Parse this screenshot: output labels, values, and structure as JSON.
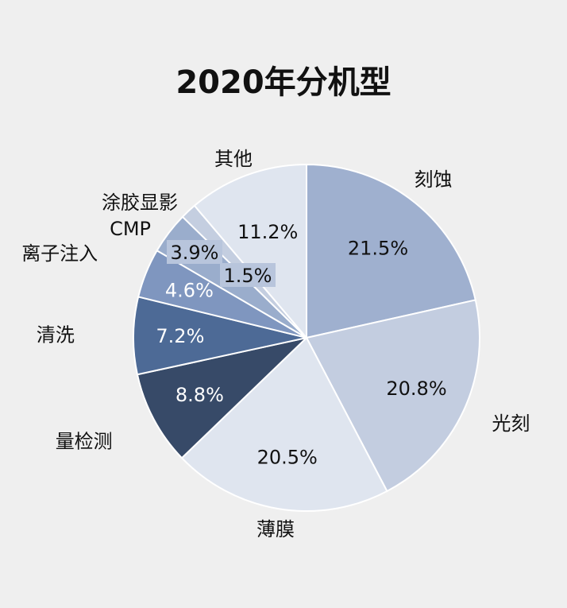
{
  "chart_data": {
    "type": "pie",
    "title": "2020年分机型",
    "slices": [
      {
        "label": "刻蚀",
        "value": 21.5,
        "display": "21.5%",
        "color": "#9fb0cf",
        "text_color": "#111111"
      },
      {
        "label": "光刻",
        "value": 20.8,
        "display": "20.8%",
        "color": "#c3cde0",
        "text_color": "#111111"
      },
      {
        "label": "薄膜",
        "value": 20.5,
        "display": "20.5%",
        "color": "#dfe5ef",
        "text_color": "#111111"
      },
      {
        "label": "量检测",
        "value": 8.8,
        "display": "8.8%",
        "color": "#374a68",
        "text_color": "#ffffff"
      },
      {
        "label": "清洗",
        "value": 7.2,
        "display": "7.2%",
        "color": "#4d6a96",
        "text_color": "#ffffff"
      },
      {
        "label": "离子注入",
        "value": 4.6,
        "display": "4.6%",
        "color": "#7f96bf",
        "text_color": "#ffffff"
      },
      {
        "label": "CMP",
        "value": 3.9,
        "display": "3.9%",
        "color": "#9aadcc",
        "text_color": "#111111"
      },
      {
        "label": "涂胶显影",
        "value": 1.5,
        "display": "1.5%",
        "color": "#c4ceE0",
        "text_color": "#111111"
      },
      {
        "label": "其他",
        "value": 11.2,
        "display": "11.2%",
        "color": "#dfe5ef",
        "text_color": "#111111"
      }
    ],
    "start_angle_deg": 0,
    "direction": "clockwise",
    "legend": "none",
    "slice_labels": "outside",
    "value_labels": "inside"
  }
}
